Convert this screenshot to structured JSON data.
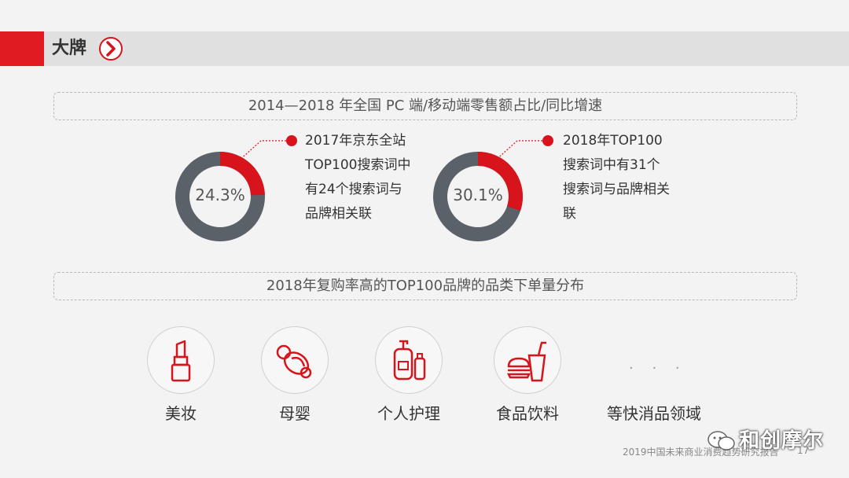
{
  "header": {
    "title": "大牌"
  },
  "section1": {
    "title": "2014—2018 年全国 PC 端/移动端零售额占比/同比增速"
  },
  "stats": [
    {
      "percent_label": "24.3%",
      "value": 24.3,
      "note": "2017年京东全站\nTOP100搜索词中\n有24个搜索词与\n品牌相关联"
    },
    {
      "percent_label": "30.1%",
      "value": 30.1,
      "note": "2018年TOP100\n搜索词中有31个\n搜索词与品牌相关\n联"
    }
  ],
  "section2": {
    "title": "2018年复购率高的TOP100品牌的品类下单量分布"
  },
  "categories": [
    {
      "label": "美妆",
      "icon": "lipstick-icon"
    },
    {
      "label": "母婴",
      "icon": "pacifier-icon"
    },
    {
      "label": "个人护理",
      "icon": "toiletries-icon"
    },
    {
      "label": "食品饮料",
      "icon": "food-drink-icon"
    },
    {
      "label": "等快消品领域",
      "icon": "ellipsis-icon"
    }
  ],
  "ellipsis": "· · ·",
  "footer": {
    "source": "2019中国未来商业消费趋势研究报告",
    "page": "17",
    "wechat_name": "和创摩尔"
  },
  "colors": {
    "accent": "#d7141c",
    "ring": "#5b6169"
  }
}
